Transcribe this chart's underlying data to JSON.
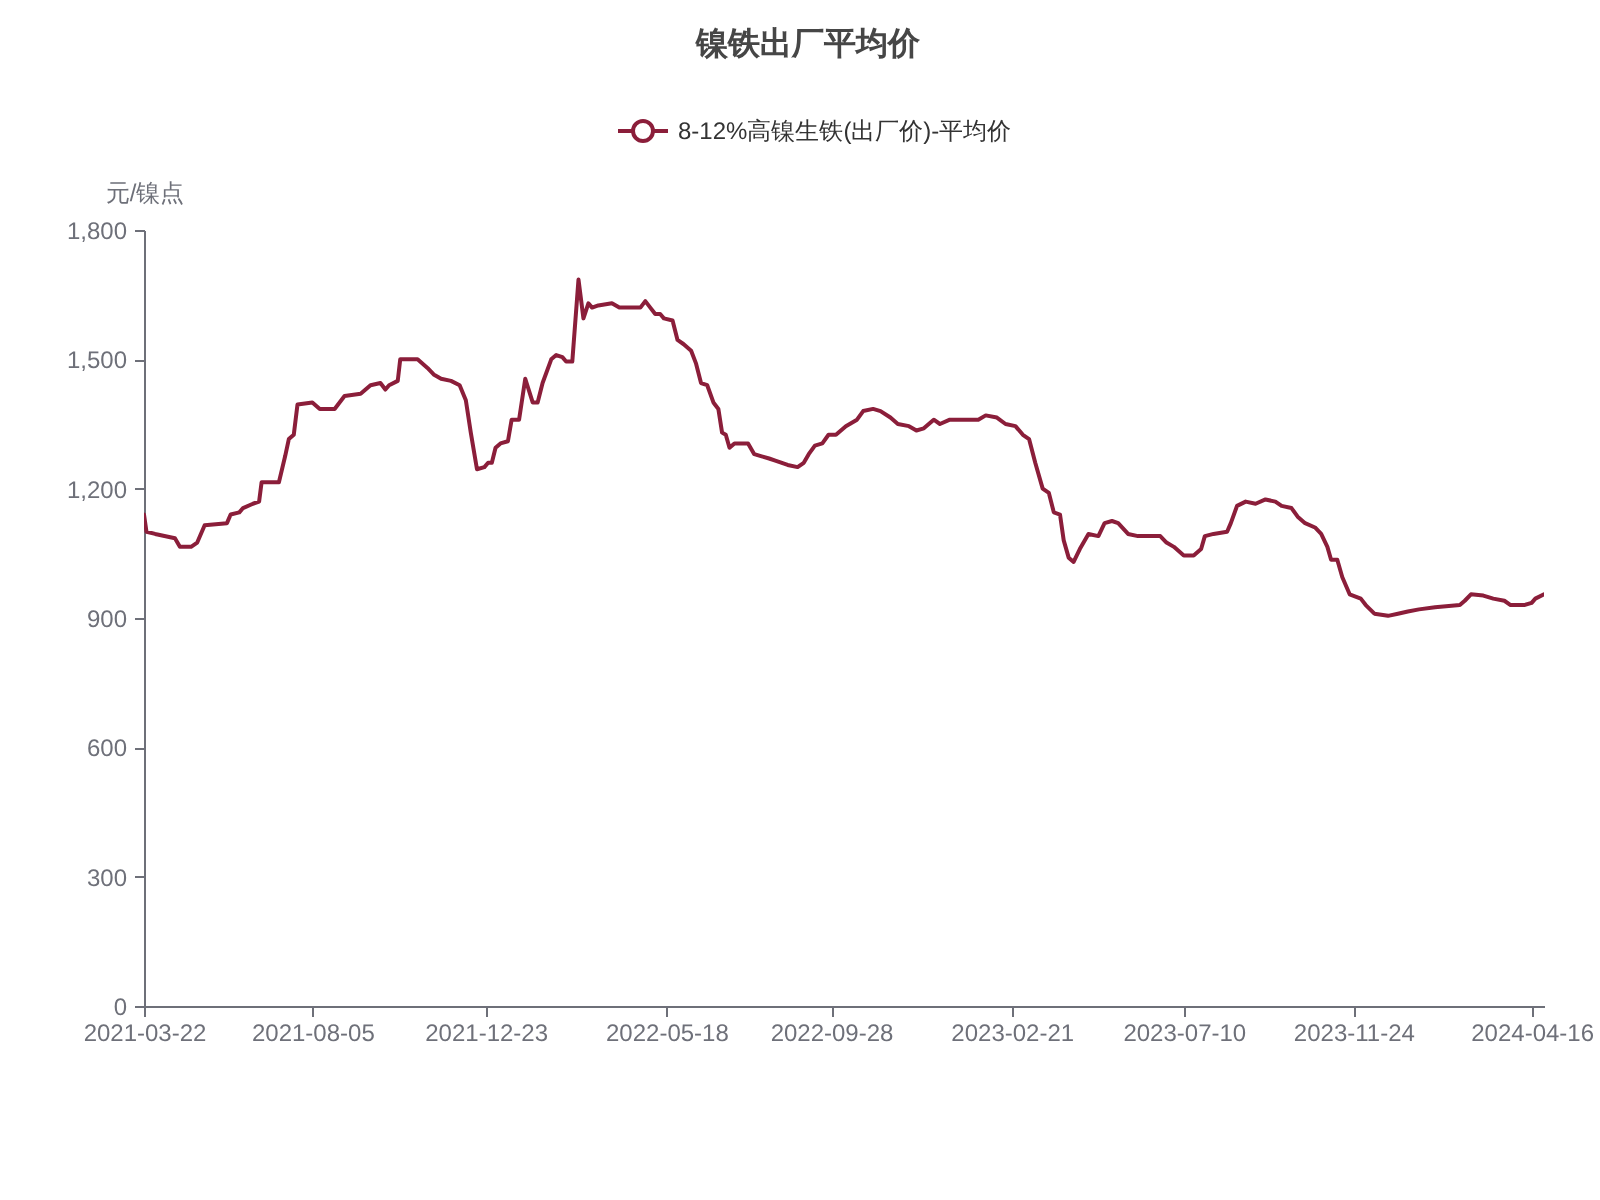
{
  "chart_data": {
    "type": "line",
    "title": "镍铁出厂平均价",
    "ylabel": "元/镍点",
    "x": [
      "2021-03-22",
      "2021-03-24",
      "2021-03-31",
      "2021-04-16",
      "2021-04-20",
      "2021-04-29",
      "2021-05-04",
      "2021-05-10",
      "2021-05-28",
      "2021-05-31",
      "2021-06-07",
      "2021-06-10",
      "2021-06-18",
      "2021-06-23",
      "2021-06-25",
      "2021-07-09",
      "2021-07-14",
      "2021-07-17",
      "2021-07-21",
      "2021-07-24",
      "2021-08-05",
      "2021-08-11",
      "2021-08-23",
      "2021-08-31",
      "2021-09-13",
      "2021-09-21",
      "2021-09-29",
      "2021-10-03",
      "2021-10-06",
      "2021-10-13",
      "2021-10-15",
      "2021-10-29",
      "2021-11-06",
      "2021-11-11",
      "2021-11-17",
      "2021-11-25",
      "2021-12-02",
      "2021-12-07",
      "2021-12-11",
      "2021-12-16",
      "2021-12-22",
      "2021-12-25",
      "2021-12-28",
      "2021-12-31",
      "2022-01-04",
      "2022-01-10",
      "2022-01-13",
      "2022-01-19",
      "2022-01-24",
      "2022-01-30",
      "2022-02-03",
      "2022-02-07",
      "2022-02-14",
      "2022-02-18",
      "2022-02-23",
      "2022-02-26",
      "2022-03-03",
      "2022-03-08",
      "2022-03-12",
      "2022-03-16",
      "2022-03-19",
      "2022-03-24",
      "2022-04-04",
      "2022-04-10",
      "2022-04-27",
      "2022-05-01",
      "2022-05-05",
      "2022-05-09",
      "2022-05-13",
      "2022-05-16",
      "2022-05-23",
      "2022-05-27",
      "2022-06-01",
      "2022-06-07",
      "2022-06-11",
      "2022-06-15",
      "2022-06-20",
      "2022-06-25",
      "2022-06-29",
      "2022-07-02",
      "2022-07-05",
      "2022-07-08",
      "2022-07-12",
      "2022-07-23",
      "2022-07-28",
      "2022-08-03",
      "2022-08-09",
      "2022-08-14",
      "2022-08-24",
      "2022-09-01",
      "2022-09-06",
      "2022-09-10",
      "2022-09-15",
      "2022-09-21",
      "2022-09-26",
      "2022-10-02",
      "2022-10-10",
      "2022-10-19",
      "2022-10-24",
      "2022-11-01",
      "2022-11-07",
      "2022-11-15",
      "2022-11-21",
      "2022-11-30",
      "2022-12-06",
      "2022-12-12",
      "2022-12-16",
      "2022-12-20",
      "2022-12-25",
      "2023-01-02",
      "2023-01-25",
      "2023-01-31",
      "2023-02-09",
      "2023-02-16",
      "2023-02-24",
      "2023-03-02",
      "2023-03-07",
      "2023-03-12",
      "2023-03-18",
      "2023-03-23",
      "2023-03-27",
      "2023-04-01",
      "2023-04-04",
      "2023-04-08",
      "2023-04-12",
      "2023-04-17",
      "2023-04-24",
      "2023-05-02",
      "2023-05-07",
      "2023-05-13",
      "2023-05-18",
      "2023-05-26",
      "2023-06-03",
      "2023-06-21",
      "2023-06-26",
      "2023-07-02",
      "2023-07-10",
      "2023-07-18",
      "2023-07-24",
      "2023-07-27",
      "2023-08-03",
      "2023-08-14",
      "2023-08-17",
      "2023-08-22",
      "2023-08-29",
      "2023-09-06",
      "2023-09-14",
      "2023-09-22",
      "2023-09-27",
      "2023-10-05",
      "2023-10-10",
      "2023-10-16",
      "2023-10-24",
      "2023-10-29",
      "2023-11-03",
      "2023-11-06",
      "2023-11-11",
      "2023-11-15",
      "2023-11-21",
      "2023-11-30",
      "2023-12-04",
      "2023-12-11",
      "2023-12-22",
      "2023-12-30",
      "2024-01-07",
      "2024-01-16",
      "2024-01-29",
      "2024-02-18",
      "2024-02-22",
      "2024-02-27",
      "2024-03-08",
      "2024-03-16",
      "2024-03-25",
      "2024-03-30",
      "2024-04-10",
      "2024-04-16",
      "2024-04-19",
      "2024-04-26"
    ],
    "series": [
      {
        "name": "8-12%高镍生铁(出厂价)-平均价",
        "color": "#8b1e3a",
        "values": [
          1140,
          1100,
          1095,
          1085,
          1065,
          1065,
          1075,
          1115,
          1120,
          1140,
          1145,
          1155,
          1165,
          1170,
          1215,
          1215,
          1275,
          1315,
          1325,
          1395,
          1400,
          1385,
          1385,
          1415,
          1420,
          1440,
          1445,
          1430,
          1440,
          1450,
          1500,
          1500,
          1480,
          1465,
          1455,
          1450,
          1440,
          1405,
          1330,
          1245,
          1250,
          1260,
          1260,
          1295,
          1305,
          1310,
          1360,
          1360,
          1455,
          1400,
          1400,
          1445,
          1500,
          1510,
          1505,
          1495,
          1495,
          1685,
          1595,
          1630,
          1620,
          1625,
          1630,
          1620,
          1620,
          1635,
          1620,
          1605,
          1605,
          1595,
          1590,
          1545,
          1535,
          1520,
          1490,
          1445,
          1440,
          1400,
          1385,
          1330,
          1325,
          1295,
          1305,
          1305,
          1280,
          1275,
          1270,
          1265,
          1255,
          1250,
          1260,
          1280,
          1300,
          1305,
          1325,
          1325,
          1345,
          1360,
          1380,
          1385,
          1380,
          1365,
          1350,
          1345,
          1335,
          1340,
          1350,
          1360,
          1350,
          1360,
          1360,
          1370,
          1365,
          1350,
          1345,
          1325,
          1315,
          1260,
          1200,
          1190,
          1145,
          1140,
          1080,
          1040,
          1030,
          1060,
          1095,
          1090,
          1120,
          1125,
          1120,
          1095,
          1090,
          1090,
          1075,
          1065,
          1045,
          1045,
          1060,
          1090,
          1095,
          1100,
          1120,
          1160,
          1170,
          1165,
          1175,
          1170,
          1160,
          1155,
          1135,
          1120,
          1110,
          1095,
          1065,
          1035,
          1035,
          995,
          955,
          945,
          930,
          910,
          905,
          910,
          915,
          920,
          925,
          930,
          940,
          955,
          952,
          945,
          940,
          930,
          930,
          935,
          945,
          955
        ]
      }
    ],
    "xlim": [
      "2021-03-22",
      "2024-04-26"
    ],
    "xticks": [
      "2021-03-22",
      "2021-08-05",
      "2021-12-23",
      "2022-05-18",
      "2022-09-28",
      "2023-02-21",
      "2023-07-10",
      "2023-11-24",
      "2024-04-16"
    ],
    "ylim": [
      0,
      1800
    ],
    "yticks": [
      0,
      300,
      600,
      900,
      {
        "value": 1200,
        "label": "1,200"
      },
      {
        "value": 1500,
        "label": "1,500"
      },
      {
        "value": 1800,
        "label": "1,800"
      }
    ],
    "legend": "top",
    "grid": false
  }
}
